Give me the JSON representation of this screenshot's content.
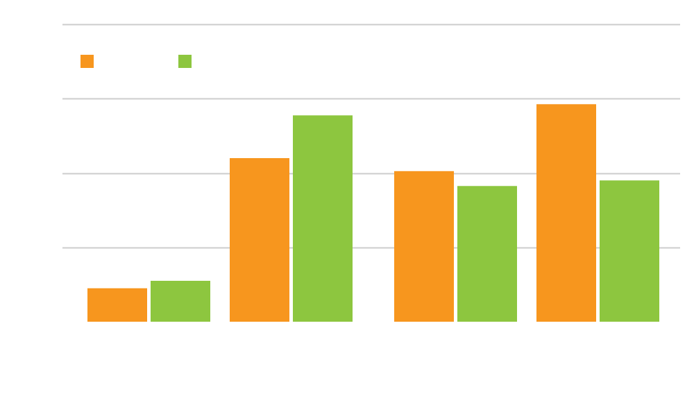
{
  "chart_data": {
    "type": "bar",
    "categories": [
      "",
      "",
      "",
      ""
    ],
    "series": [
      {
        "values": [
          0.9,
          4.4,
          4.05,
          5.85
        ]
      },
      {
        "values": [
          1.1,
          5.55,
          3.65,
          3.8
        ]
      }
    ],
    "ylim": [
      0,
      8
    ],
    "grid": true,
    "legend": "top-left",
    "colors": [
      "#f7961e",
      "#8dc63f"
    ],
    "gridline_color": "#cccccc"
  }
}
